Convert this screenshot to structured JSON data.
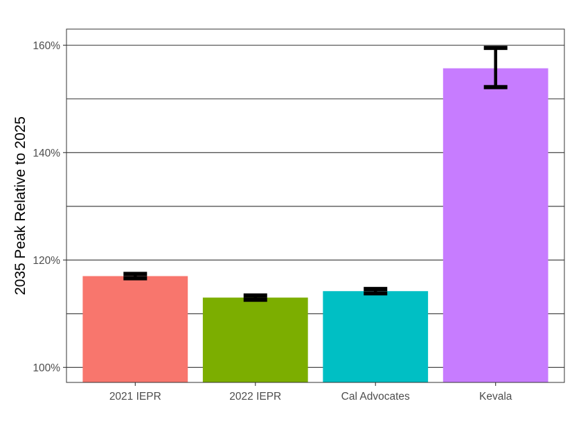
{
  "chart_data": {
    "type": "bar",
    "title": "",
    "xlabel": "",
    "ylabel": "2035 Peak Relative to 2025",
    "categories": [
      "2021 IEPR",
      "2022 IEPR",
      "Cal Advocates",
      "Kevala"
    ],
    "values": [
      117.0,
      113.0,
      114.2,
      155.7
    ],
    "error_low": [
      116.6,
      112.6,
      113.8,
      152.2
    ],
    "error_high": [
      117.4,
      113.4,
      114.6,
      159.5
    ],
    "colors": [
      "#F8766D",
      "#7CAE00",
      "#00BFC4",
      "#C77CFF"
    ],
    "ylim": [
      97.2,
      163.0
    ],
    "yticks": [
      100,
      120,
      140,
      160
    ],
    "ytick_labels": [
      "100%",
      "120%",
      "140%",
      "160%"
    ],
    "minor_grid": [
      110,
      130,
      150
    ],
    "grid": true,
    "legend": "none"
  }
}
